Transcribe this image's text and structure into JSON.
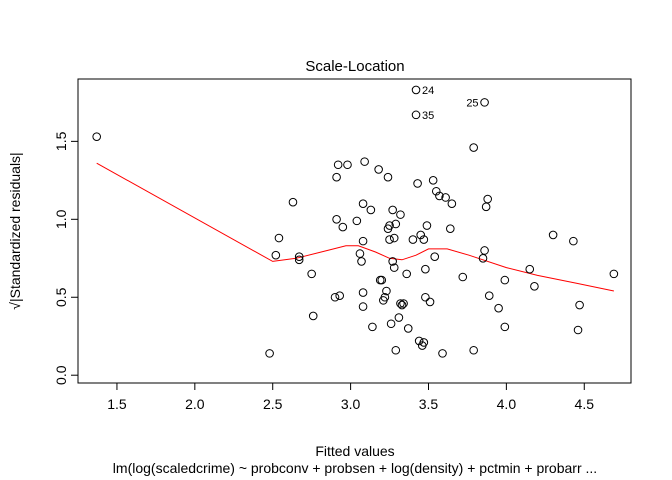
{
  "chart_data": {
    "type": "scatter",
    "title": "Scale-Location",
    "xlabel": "Fitted values",
    "ylabel": "√|Standardized residuals|",
    "subtitle": "lm(log(scaledcrime) ~ probconv + probsen + log(density) + pctmin + probarr  ...",
    "xlim": [
      1.25,
      4.8
    ],
    "ylim": [
      -0.05,
      1.9
    ],
    "x_ticks": [
      1.5,
      2.0,
      2.5,
      3.0,
      3.5,
      4.0,
      4.5
    ],
    "x_tick_labels": [
      "1.5",
      "2.0",
      "2.5",
      "3.0",
      "3.5",
      "4.0",
      "4.5"
    ],
    "y_ticks": [
      0.0,
      0.5,
      1.0,
      1.5
    ],
    "y_tick_labels": [
      "0.0",
      "0.5",
      "1.0",
      "1.5"
    ],
    "grid": false,
    "colors": {
      "points": "#000000",
      "smoother": "#ff0000",
      "axes": "#000000"
    },
    "points": [
      [
        1.37,
        1.53
      ],
      [
        2.48,
        0.14
      ],
      [
        2.52,
        0.77
      ],
      [
        2.54,
        0.88
      ],
      [
        2.63,
        1.11
      ],
      [
        2.67,
        0.76
      ],
      [
        2.67,
        0.74
      ],
      [
        2.75,
        0.65
      ],
      [
        2.76,
        0.38
      ],
      [
        2.9,
        0.5
      ],
      [
        2.91,
        1.27
      ],
      [
        2.91,
        1.0
      ],
      [
        2.92,
        1.35
      ],
      [
        2.93,
        0.51
      ],
      [
        2.95,
        0.95
      ],
      [
        2.98,
        1.35
      ],
      [
        3.04,
        0.99
      ],
      [
        3.06,
        0.78
      ],
      [
        3.07,
        0.73
      ],
      [
        3.08,
        1.1
      ],
      [
        3.08,
        0.86
      ],
      [
        3.08,
        0.53
      ],
      [
        3.08,
        0.44
      ],
      [
        3.09,
        1.37
      ],
      [
        3.13,
        1.06
      ],
      [
        3.14,
        0.31
      ],
      [
        3.18,
        1.32
      ],
      [
        3.19,
        0.61
      ],
      [
        3.2,
        0.61
      ],
      [
        3.21,
        0.48
      ],
      [
        3.22,
        0.5
      ],
      [
        3.23,
        0.54
      ],
      [
        3.24,
        1.27
      ],
      [
        3.24,
        0.94
      ],
      [
        3.25,
        0.96
      ],
      [
        3.25,
        0.87
      ],
      [
        3.26,
        0.33
      ],
      [
        3.27,
        1.06
      ],
      [
        3.27,
        0.73
      ],
      [
        3.28,
        0.88
      ],
      [
        3.28,
        0.69
      ],
      [
        3.29,
        0.97
      ],
      [
        3.29,
        0.16
      ],
      [
        3.31,
        0.37
      ],
      [
        3.32,
        1.03
      ],
      [
        3.32,
        0.46
      ],
      [
        3.33,
        0.45
      ],
      [
        3.34,
        0.46
      ],
      [
        3.36,
        0.65
      ],
      [
        3.37,
        0.3
      ],
      [
        3.4,
        0.87
      ],
      [
        3.42,
        1.83
      ],
      [
        3.42,
        1.67
      ],
      [
        3.43,
        1.23
      ],
      [
        3.44,
        0.22
      ],
      [
        3.45,
        0.9
      ],
      [
        3.46,
        0.19
      ],
      [
        3.47,
        0.87
      ],
      [
        3.47,
        0.21
      ],
      [
        3.48,
        0.5
      ],
      [
        3.48,
        0.68
      ],
      [
        3.49,
        0.96
      ],
      [
        3.51,
        0.47
      ],
      [
        3.53,
        1.25
      ],
      [
        3.54,
        0.76
      ],
      [
        3.55,
        1.18
      ],
      [
        3.57,
        1.15
      ],
      [
        3.59,
        0.14
      ],
      [
        3.61,
        1.14
      ],
      [
        3.64,
        0.94
      ],
      [
        3.65,
        1.1
      ],
      [
        3.72,
        0.63
      ],
      [
        3.79,
        1.46
      ],
      [
        3.79,
        0.16
      ],
      [
        3.85,
        0.75
      ],
      [
        3.86,
        1.75
      ],
      [
        3.86,
        0.8
      ],
      [
        3.87,
        1.08
      ],
      [
        3.88,
        1.13
      ],
      [
        3.89,
        0.51
      ],
      [
        3.95,
        0.43
      ],
      [
        3.99,
        0.61
      ],
      [
        3.99,
        0.31
      ],
      [
        4.15,
        0.68
      ],
      [
        4.18,
        0.57
      ],
      [
        4.3,
        0.9
      ],
      [
        4.43,
        0.86
      ],
      [
        4.46,
        0.29
      ],
      [
        4.47,
        0.45
      ],
      [
        4.69,
        0.65
      ]
    ],
    "point_labels": [
      {
        "text": "24",
        "x": 3.42,
        "y": 1.83,
        "side": "right"
      },
      {
        "text": "35",
        "x": 3.42,
        "y": 1.67,
        "side": "right"
      },
      {
        "text": "25",
        "x": 3.86,
        "y": 1.75,
        "side": "left"
      }
    ],
    "smoother": [
      [
        1.37,
        1.36
      ],
      [
        2.5,
        0.73
      ],
      [
        2.65,
        0.75
      ],
      [
        2.85,
        0.8
      ],
      [
        2.97,
        0.83
      ],
      [
        3.05,
        0.83
      ],
      [
        3.16,
        0.79
      ],
      [
        3.25,
        0.75
      ],
      [
        3.33,
        0.74
      ],
      [
        3.42,
        0.77
      ],
      [
        3.5,
        0.81
      ],
      [
        3.62,
        0.81
      ],
      [
        3.76,
        0.77
      ],
      [
        4.0,
        0.69
      ],
      [
        4.2,
        0.64
      ],
      [
        4.45,
        0.59
      ],
      [
        4.69,
        0.54
      ]
    ]
  }
}
